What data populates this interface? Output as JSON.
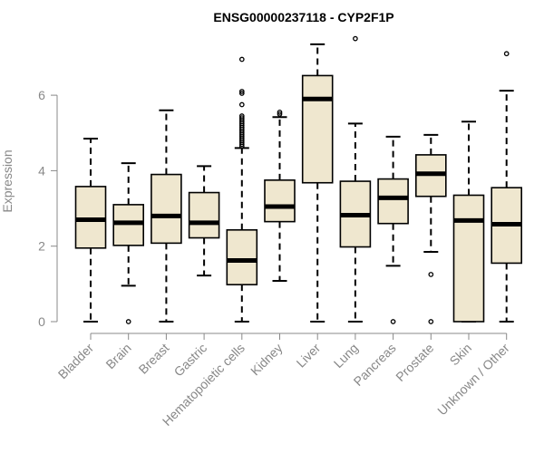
{
  "chart_data": {
    "type": "boxplot",
    "title": "ENSG00000237118 - CYP2F1P",
    "ylabel": "Expression",
    "xlabel": "",
    "ylim": [
      0,
      7.6
    ],
    "yticks": [
      0,
      2,
      4,
      6
    ],
    "box_fill": "#efe7cf",
    "categories": [
      "Bladder",
      "Brain",
      "Breast",
      "Gastric",
      "Hematopoietic cells",
      "Kidney",
      "Liver",
      "Lung",
      "Pancreas",
      "Prostate",
      "Skin",
      "Unknown / Other"
    ],
    "boxes": [
      {
        "whisker_low": 0.0,
        "q1": 1.95,
        "median": 2.7,
        "q3": 3.58,
        "whisker_high": 4.85,
        "outliers": []
      },
      {
        "whisker_low": 0.95,
        "q1": 2.02,
        "median": 2.62,
        "q3": 3.1,
        "whisker_high": 4.2,
        "outliers": [
          0.0
        ]
      },
      {
        "whisker_low": 0.0,
        "q1": 2.08,
        "median": 2.8,
        "q3": 3.9,
        "whisker_high": 5.6,
        "outliers": []
      },
      {
        "whisker_low": 1.22,
        "q1": 2.22,
        "median": 2.62,
        "q3": 3.42,
        "whisker_high": 4.12,
        "outliers": []
      },
      {
        "whisker_low": 0.0,
        "q1": 0.98,
        "median": 1.62,
        "q3": 2.43,
        "whisker_high": 4.6,
        "outliers": [
          4.65,
          4.7,
          4.75,
          4.8,
          4.85,
          4.9,
          4.95,
          5.0,
          5.05,
          5.1,
          5.15,
          5.2,
          5.25,
          5.3,
          5.35,
          5.4,
          5.45,
          5.75,
          6.05,
          6.1,
          6.95
        ]
      },
      {
        "whisker_low": 1.08,
        "q1": 2.65,
        "median": 3.05,
        "q3": 3.75,
        "whisker_high": 5.42,
        "outliers": [
          5.5,
          5.55
        ]
      },
      {
        "whisker_low": 0.0,
        "q1": 3.68,
        "median": 5.9,
        "q3": 6.52,
        "whisker_high": 7.35,
        "outliers": []
      },
      {
        "whisker_low": 0.0,
        "q1": 1.98,
        "median": 2.82,
        "q3": 3.72,
        "whisker_high": 5.25,
        "outliers": [
          7.5
        ]
      },
      {
        "whisker_low": 1.48,
        "q1": 2.6,
        "median": 3.28,
        "q3": 3.78,
        "whisker_high": 4.9,
        "outliers": [
          0.0
        ]
      },
      {
        "whisker_low": 1.85,
        "q1": 3.32,
        "median": 3.92,
        "q3": 4.42,
        "whisker_high": 4.95,
        "outliers": [
          1.25,
          0.0
        ]
      },
      {
        "whisker_low": 0.0,
        "q1": 0.0,
        "median": 2.68,
        "q3": 3.35,
        "whisker_high": 5.3,
        "outliers": []
      },
      {
        "whisker_low": 0.0,
        "q1": 1.55,
        "median": 2.58,
        "q3": 3.55,
        "whisker_high": 6.12,
        "outliers": [
          7.1
        ]
      }
    ],
    "grid": false,
    "legend": "none"
  }
}
